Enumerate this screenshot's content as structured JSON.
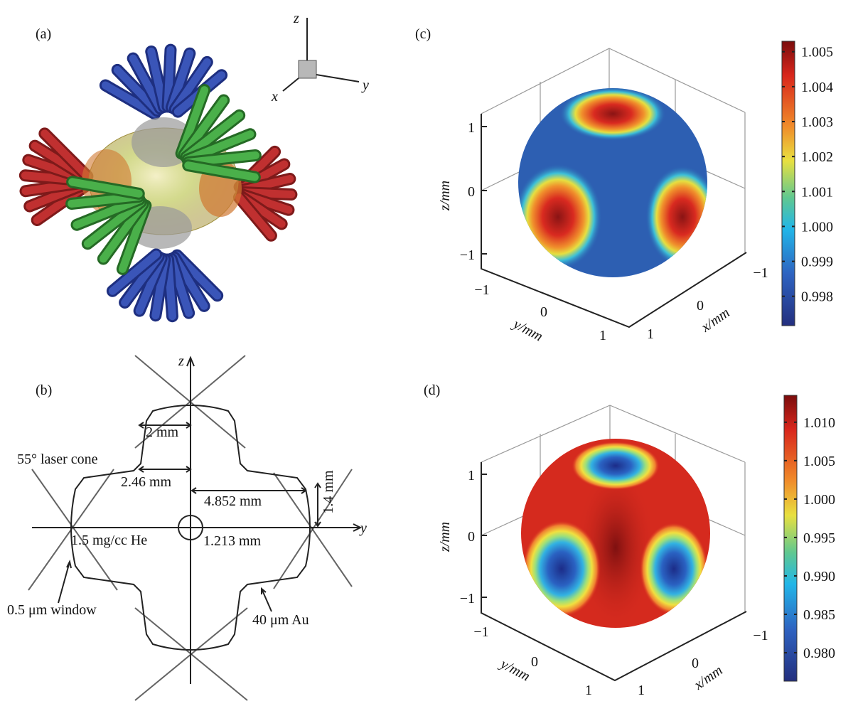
{
  "figure": {
    "a": {
      "label": "(a)",
      "triad": {
        "z": "z",
        "y": "y",
        "x": "x"
      }
    },
    "b": {
      "label": "(b)",
      "axes": {
        "z": "z",
        "y": "y"
      },
      "annotations": [
        "2 mm",
        "55° laser cone",
        "2.46 mm",
        "4.852 mm",
        "1.4 mm",
        "1.5 mg/cc He",
        "1.213 mm",
        "0.5  μm window",
        "40 μm Au"
      ]
    },
    "c": {
      "label": "(c)",
      "z_label": "z/mm",
      "y_label": "y/mm",
      "x_label": "x/mm",
      "z_ticks": [
        "1",
        "0",
        "−1"
      ],
      "y_ticks": [
        "−1",
        "0",
        "1"
      ],
      "x_ticks": [
        "1",
        "0",
        "−1"
      ],
      "colorbar": {
        "clim": [
          0.99716,
          1.0053
        ],
        "ticks": [
          1.005,
          1.004,
          1.003,
          1.002,
          1.001,
          {
            "value": 1,
            "label": "1.000"
          },
          0.999,
          0.998
        ]
      }
    },
    "d": {
      "label": "(d)",
      "z_label": "z/mm",
      "y_label": "y/mm",
      "x_label": "x/mm",
      "z_ticks": [
        "1",
        "0",
        "−1"
      ],
      "y_ticks": [
        "−1",
        "0",
        "1"
      ],
      "x_ticks": [
        "1",
        "0",
        "−1"
      ],
      "colorbar": {
        "clim": [
          0.9763,
          1.0135
        ],
        "ticks": [
          {
            "value": 1.01,
            "label": "1.010"
          },
          1.005,
          {
            "value": 1,
            "label": "1.000"
          },
          0.995,
          {
            "value": 0.99,
            "label": "0.990"
          },
          0.985,
          {
            "value": 0.98,
            "label": "0.980"
          }
        ]
      }
    }
  }
}
